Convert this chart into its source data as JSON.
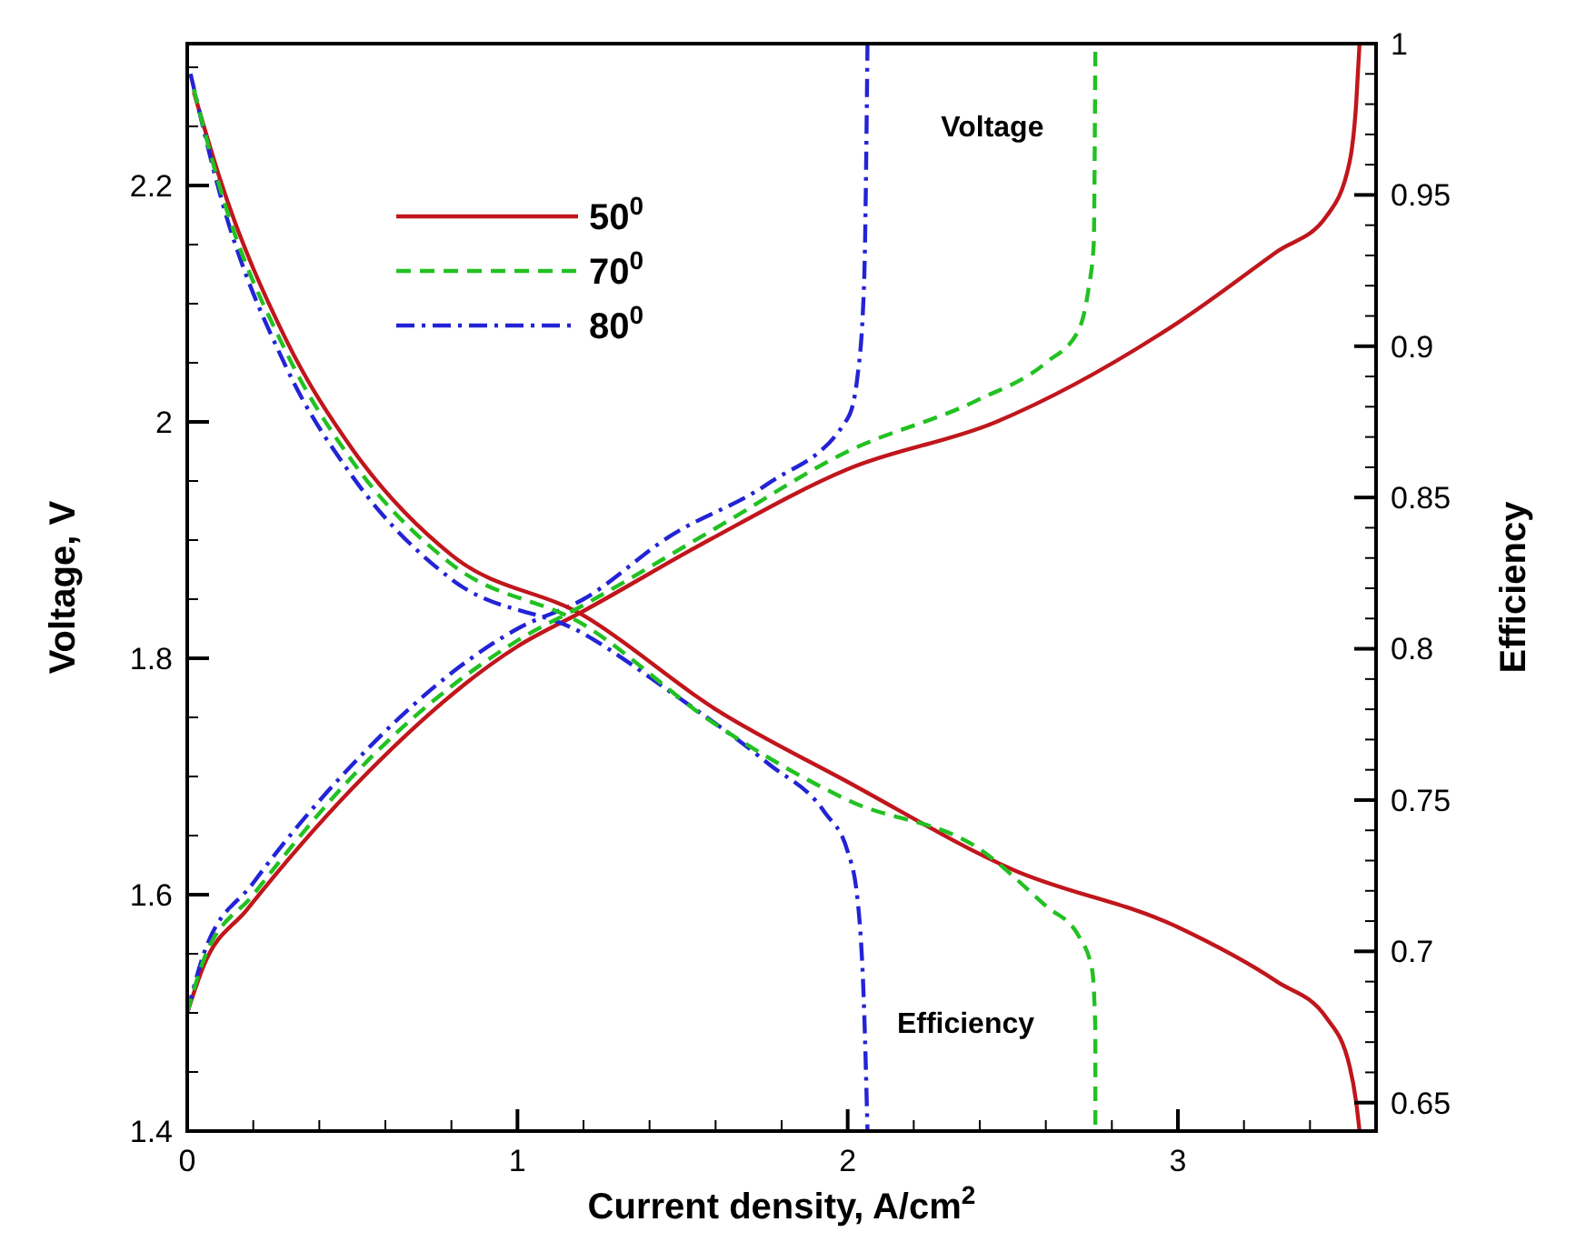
{
  "chart_data": {
    "type": "line",
    "xlabel": "Current density, A/cm$^{2}$",
    "ylabel": "Voltage, V",
    "y2label": "Efficiency",
    "xlim": [
      0,
      3.6
    ],
    "ylim": [
      1.4,
      2.32
    ],
    "y2lim": [
      0.6406,
      1
    ],
    "xticks": [
      0,
      {
        "value": 0.2,
        "label": null
      },
      {
        "value": 0.4,
        "label": null
      },
      {
        "value": 0.6,
        "label": null
      },
      {
        "value": 0.8,
        "label": null
      },
      1,
      {
        "value": 1.2,
        "label": null
      },
      {
        "value": 1.4,
        "label": null
      },
      {
        "value": 1.6,
        "label": null
      },
      {
        "value": 1.8,
        "label": null
      },
      2,
      {
        "value": 2.2,
        "label": null
      },
      {
        "value": 2.4,
        "label": null
      },
      {
        "value": 2.6,
        "label": null
      },
      {
        "value": 2.8,
        "label": null
      },
      3,
      {
        "value": 3.2,
        "label": null
      },
      {
        "value": 3.4,
        "label": null
      }
    ],
    "yticks": [
      1.4,
      {
        "value": 1.45,
        "label": null
      },
      {
        "value": 1.5,
        "label": null
      },
      {
        "value": 1.55,
        "label": null
      },
      1.6,
      {
        "value": 1.65,
        "label": null
      },
      {
        "value": 1.7,
        "label": null
      },
      {
        "value": 1.75,
        "label": null
      },
      1.8,
      {
        "value": 1.85,
        "label": null
      },
      {
        "value": 1.9,
        "label": null
      },
      {
        "value": 1.95,
        "label": null
      },
      2,
      {
        "value": 2.05,
        "label": null
      },
      {
        "value": 2.1,
        "label": null
      },
      {
        "value": 2.15,
        "label": null
      },
      2.2,
      {
        "value": 2.25,
        "label": null
      },
      {
        "value": 2.3,
        "label": null
      }
    ],
    "y2ticks": [
      0.65,
      {
        "value": 0.66,
        "label": null
      },
      {
        "value": 0.67,
        "label": null
      },
      {
        "value": 0.68,
        "label": null
      },
      {
        "value": 0.69,
        "label": null
      },
      0.7,
      {
        "value": 0.71,
        "label": null
      },
      {
        "value": 0.72,
        "label": null
      },
      {
        "value": 0.73,
        "label": null
      },
      {
        "value": 0.74,
        "label": null
      },
      0.75,
      {
        "value": 0.76,
        "label": null
      },
      {
        "value": 0.77,
        "label": null
      },
      {
        "value": 0.78,
        "label": null
      },
      {
        "value": 0.79,
        "label": null
      },
      0.8,
      {
        "value": 0.81,
        "label": null
      },
      {
        "value": 0.82,
        "label": null
      },
      {
        "value": 0.83,
        "label": null
      },
      {
        "value": 0.84,
        "label": null
      },
      0.85,
      {
        "value": 0.86,
        "label": null
      },
      {
        "value": 0.87,
        "label": null
      },
      {
        "value": 0.88,
        "label": null
      },
      {
        "value": 0.89,
        "label": null
      },
      0.9,
      {
        "value": 0.91,
        "label": null
      },
      {
        "value": 0.92,
        "label": null
      },
      {
        "value": 0.93,
        "label": null
      },
      {
        "value": 0.94,
        "label": null
      },
      0.95,
      {
        "value": 0.96,
        "label": null
      },
      {
        "value": 0.97,
        "label": null
      },
      {
        "value": 0.98,
        "label": null
      },
      {
        "value": 0.99,
        "label": null
      },
      1
    ],
    "legend": "top left",
    "grid": false,
    "marker": "none",
    "annotations": [
      "Voltage",
      "Efficiency"
    ],
    "series": [
      {
        "name": "50$^{0}$",
        "color": "#c0161c",
        "line_style": "solid",
        "x": [
          0,
          0.05,
          0.18,
          0.5,
          1,
          1.2,
          1.58,
          2,
          2.45,
          3,
          3.3,
          3.45,
          3.52,
          3.54,
          3.55
        ],
        "values": [
          1.5,
          1.54,
          1.587,
          1.69,
          1.81,
          1.84,
          1.9,
          1.96,
          2.0,
          2.084,
          2.144,
          2.174,
          2.22,
          2.27,
          2.32
        ]
      },
      {
        "name": "70$^{0}$",
        "color": "#22c122",
        "line_style": "dashed",
        "x": [
          0,
          0.05,
          0.2,
          0.5,
          1,
          1.2,
          1.6,
          2,
          2.39,
          2.6,
          2.7,
          2.73,
          2.745,
          2.75
        ],
        "values": [
          1.5,
          1.545,
          1.6,
          1.7,
          1.815,
          1.845,
          1.91,
          1.975,
          2.018,
          2.05,
          2.078,
          2.114,
          2.15,
          2.32
        ]
      },
      {
        "name": "80$^{0}$",
        "color": "#2323d6",
        "line_style": "dashdot",
        "x": [
          0,
          0.05,
          0.2,
          0.5,
          1,
          1.2,
          1.46,
          1.76,
          2,
          2.03,
          2.05,
          2.06
        ],
        "values": [
          1.5,
          1.55,
          1.61,
          1.71,
          1.825,
          1.85,
          1.903,
          1.948,
          2.003,
          2.039,
          2.12,
          2.32
        ]
      },
      {
        "color": "#c0161c",
        "line_style": "solid",
        "axis": "y2",
        "x": [
          0.02,
          0.1,
          0.3,
          0.5,
          0.8,
          1.2,
          1.6,
          2,
          2.5,
          3,
          3.3,
          3.45,
          3.52,
          3.54,
          3.55
        ],
        "values": [
          0.984,
          0.955,
          0.902,
          0.866,
          0.831,
          0.811,
          0.78,
          0.756,
          0.727,
          0.708,
          0.69,
          0.678,
          0.662,
          0.65,
          0.6406
        ]
      },
      {
        "color": "#22c122",
        "line_style": "dashed",
        "axis": "y2",
        "x": [
          0.02,
          0.1,
          0.3,
          0.5,
          0.8,
          1.2,
          1.6,
          2,
          2.41,
          2.6,
          2.7,
          2.74,
          2.75,
          2.75
        ],
        "values": [
          0.985,
          0.952,
          0.898,
          0.862,
          0.828,
          0.808,
          0.775,
          0.75,
          0.733,
          0.715,
          0.705,
          0.694,
          0.674,
          0.6406
        ]
      },
      {
        "color": "#2323d6",
        "line_style": "dashdot",
        "axis": "y2",
        "x": [
          0.01,
          0.1,
          0.3,
          0.5,
          0.8,
          1.2,
          1.46,
          1.76,
          1.93,
          2,
          2.03,
          2.05,
          2.06
        ],
        "values": [
          0.99,
          0.95,
          0.893,
          0.857,
          0.823,
          0.805,
          0.786,
          0.762,
          0.746,
          0.733,
          0.717,
          0.68,
          0.6406
        ]
      }
    ]
  }
}
